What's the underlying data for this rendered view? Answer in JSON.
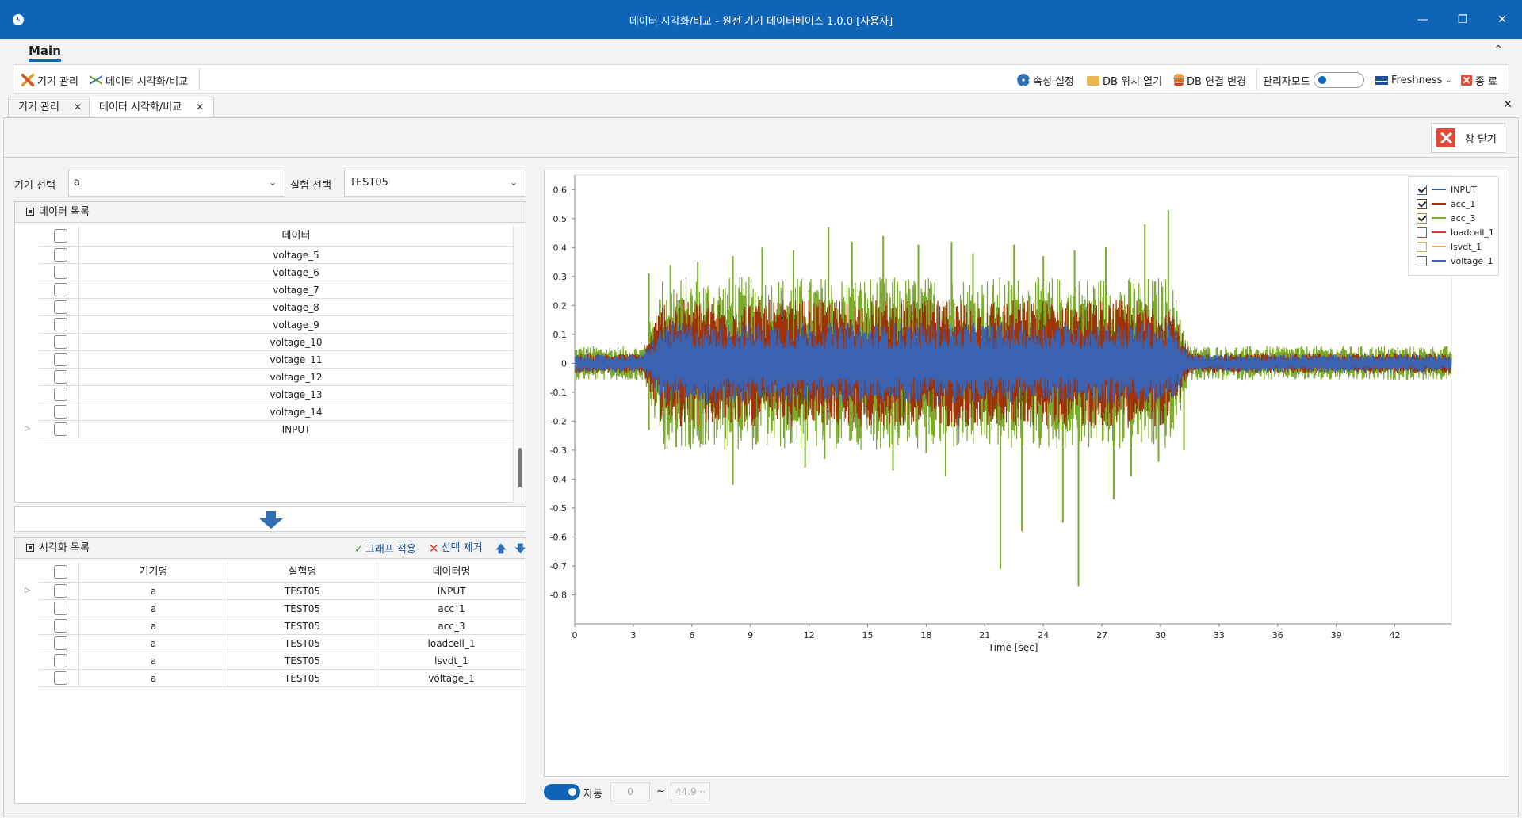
{
  "window": {
    "title": "데이터 시각화/비교 - 원전 기기 데이터베이스 1.0.0 [사용자]",
    "minimize": "—",
    "restore": "❐",
    "close": "✕"
  },
  "ribbon": {
    "tab_main": "Main",
    "collapse": "⌃",
    "left_items": [
      "기기 관리",
      "데이터 시각화/비교"
    ],
    "right_items": {
      "properties": "속성 설정",
      "open_db_location": "DB 위치 열기",
      "change_db_connection": "DB 연결 변경",
      "admin_mode": "관리자모드",
      "theme": "Freshness",
      "exit": "종 료"
    }
  },
  "doc_tabs": [
    {
      "label": "기기 관리",
      "active": false
    },
    {
      "label": "데이터 시각화/비교",
      "active": true
    }
  ],
  "doc_close_all": "✕",
  "command": {
    "close_window": "창 닫기"
  },
  "selection": {
    "device_label": "기기 선택",
    "device_value": "a",
    "experiment_label": "실험 선택",
    "experiment_value": "TEST05"
  },
  "data_list": {
    "title": "데이터 목록",
    "column": "데이터",
    "rows": [
      "voltage_5",
      "voltage_6",
      "voltage_7",
      "voltage_8",
      "voltage_9",
      "voltage_10",
      "voltage_11",
      "voltage_12",
      "voltage_13",
      "voltage_14",
      "INPUT"
    ]
  },
  "vis_list": {
    "title": "시각화 목록",
    "apply_graph": "그래프 적용",
    "remove_selected": "선택 제거",
    "columns": [
      "기기명",
      "실험명",
      "데이터명"
    ],
    "rows": [
      [
        "a",
        "TEST05",
        "INPUT"
      ],
      [
        "a",
        "TEST05",
        "acc_1"
      ],
      [
        "a",
        "TEST05",
        "acc_3"
      ],
      [
        "a",
        "TEST05",
        "loadcell_1"
      ],
      [
        "a",
        "TEST05",
        "lsvdt_1"
      ],
      [
        "a",
        "TEST05",
        "voltage_1"
      ]
    ]
  },
  "range": {
    "auto_label": "자동",
    "min": "0",
    "sep": "~",
    "max": "44.9···"
  },
  "chart_data": {
    "type": "line",
    "xlabel": "Time [sec]",
    "ylabel": "",
    "xlim": [
      0,
      44.9
    ],
    "ylim": [
      -0.9,
      0.65
    ],
    "x_ticks": [
      0,
      3,
      6,
      9,
      12,
      15,
      18,
      21,
      24,
      27,
      30,
      33,
      36,
      39,
      42
    ],
    "y_ticks": [
      0.6,
      0.5,
      0.4,
      0.3,
      0.2,
      0.1,
      0,
      -0.1,
      -0.2,
      -0.3,
      -0.4,
      -0.5,
      -0.6,
      -0.7,
      -0.8
    ],
    "grid": false,
    "legend_position": "top-right",
    "series": [
      {
        "name": "INPUT",
        "color": "#2e5fa8",
        "checked": true,
        "visible": false,
        "baseline_amp": 0.03,
        "peak_amp": 0.14
      },
      {
        "name": "acc_1",
        "color": "#a0320a",
        "checked": true,
        "visible": true,
        "baseline_amp": 0.035,
        "peak_amp": 0.22
      },
      {
        "name": "acc_3",
        "color": "#7cab2c",
        "checked": true,
        "visible": true,
        "baseline_amp": 0.06,
        "peak_amp": 0.3
      },
      {
        "name": "loadcell_1",
        "color": "#d63b2b",
        "checked": false,
        "visible": false,
        "baseline_amp": 0.02,
        "peak_amp": 0.1
      },
      {
        "name": "lsvdt_1",
        "color": "#e8b040",
        "checked": false,
        "visible": false,
        "baseline_amp": 0.02,
        "peak_amp": 0.1
      },
      {
        "name": "voltage_1",
        "color": "#3a62b0",
        "checked": false,
        "visible": true,
        "baseline_amp": 0.03,
        "peak_amp": 0.14
      }
    ],
    "strong_motion_window": [
      4.5,
      31.5
    ],
    "spikes": [
      {
        "x": 3.8,
        "y": 0.31
      },
      {
        "x": 3.8,
        "y": -0.23
      },
      {
        "x": 4.9,
        "y": 0.34
      },
      {
        "x": 5.2,
        "y": -0.29
      },
      {
        "x": 6.3,
        "y": 0.35
      },
      {
        "x": 6.7,
        "y": -0.28
      },
      {
        "x": 8.1,
        "y": 0.37
      },
      {
        "x": 8.1,
        "y": -0.42
      },
      {
        "x": 9.6,
        "y": 0.4
      },
      {
        "x": 9.3,
        "y": -0.28
      },
      {
        "x": 11.2,
        "y": 0.39
      },
      {
        "x": 11.8,
        "y": -0.36
      },
      {
        "x": 13.0,
        "y": 0.47
      },
      {
        "x": 12.8,
        "y": -0.33
      },
      {
        "x": 14.2,
        "y": 0.42
      },
      {
        "x": 14.6,
        "y": -0.26
      },
      {
        "x": 15.8,
        "y": 0.44
      },
      {
        "x": 16.3,
        "y": -0.37
      },
      {
        "x": 17.6,
        "y": 0.41
      },
      {
        "x": 18.0,
        "y": -0.31
      },
      {
        "x": 19.3,
        "y": 0.42
      },
      {
        "x": 19.0,
        "y": -0.39
      },
      {
        "x": 20.4,
        "y": 0.38
      },
      {
        "x": 21.8,
        "y": -0.71
      },
      {
        "x": 22.5,
        "y": 0.41
      },
      {
        "x": 22.9,
        "y": -0.58
      },
      {
        "x": 24.0,
        "y": 0.37
      },
      {
        "x": 25.0,
        "y": -0.55
      },
      {
        "x": 25.6,
        "y": 0.39
      },
      {
        "x": 25.8,
        "y": -0.77
      },
      {
        "x": 27.2,
        "y": 0.4
      },
      {
        "x": 27.6,
        "y": -0.47
      },
      {
        "x": 29.2,
        "y": 0.48
      },
      {
        "x": 28.5,
        "y": -0.39
      },
      {
        "x": 30.4,
        "y": 0.53
      },
      {
        "x": 29.9,
        "y": -0.34
      },
      {
        "x": 31.0,
        "y": 0.15
      },
      {
        "x": 31.2,
        "y": -0.3
      }
    ]
  }
}
